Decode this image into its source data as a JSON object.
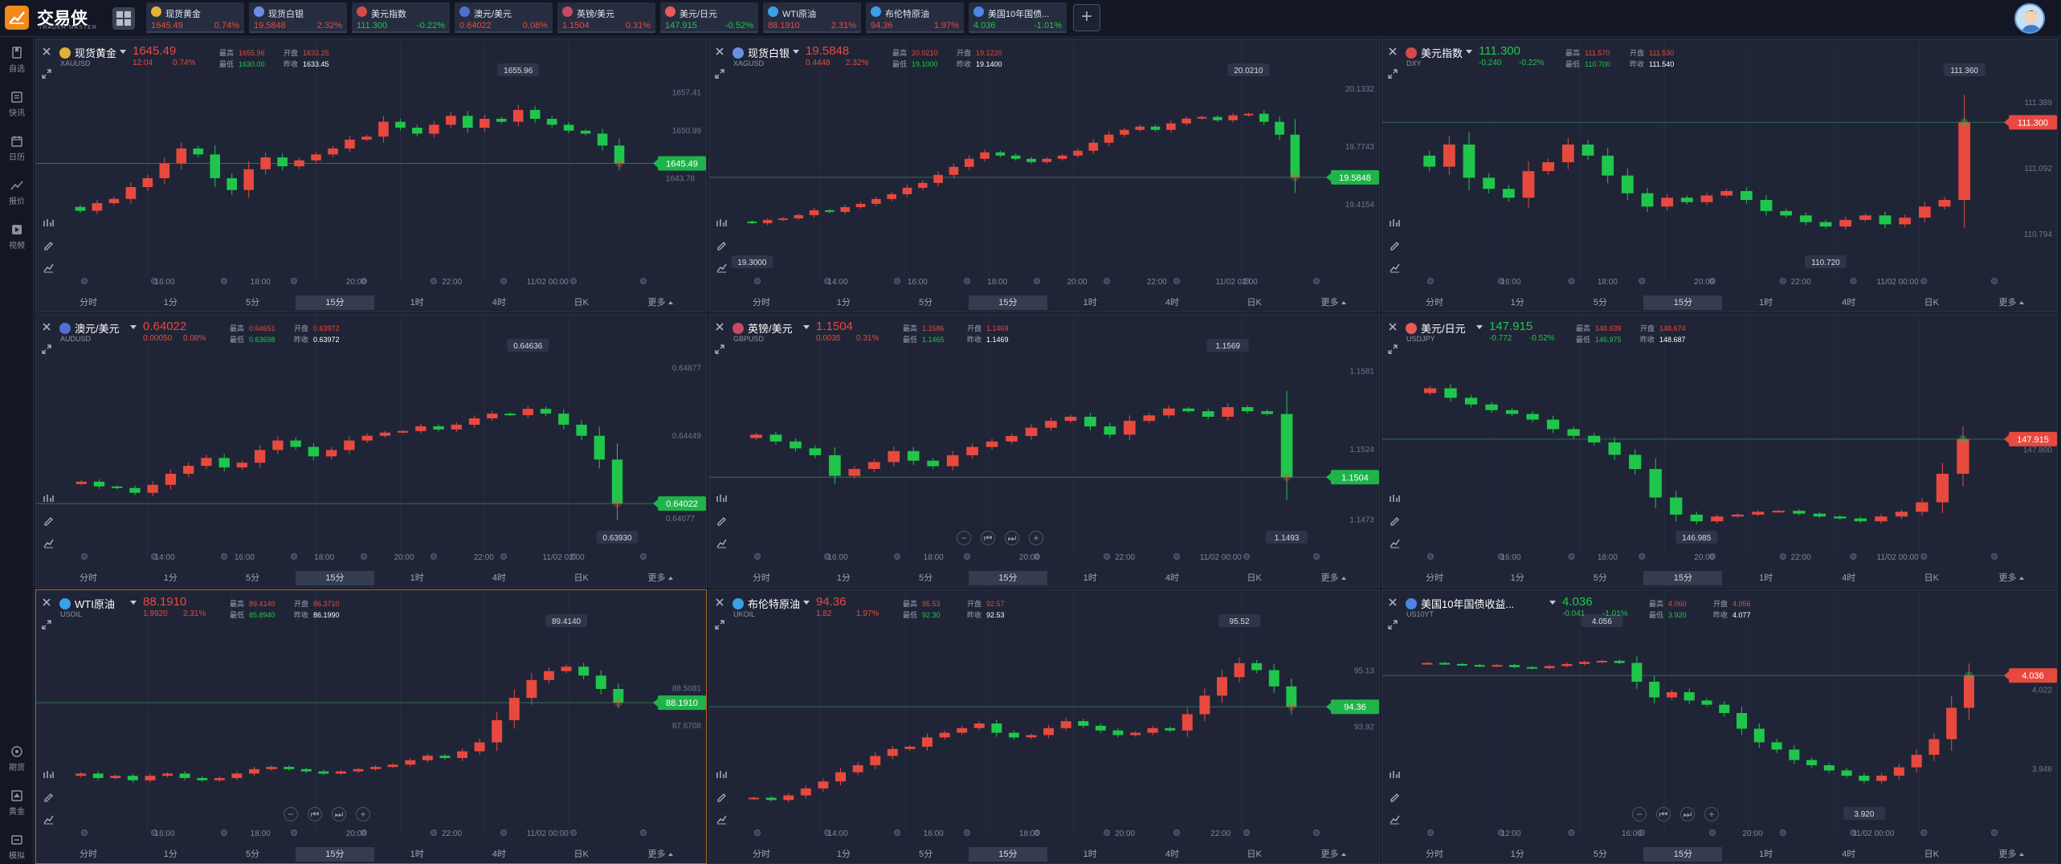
{
  "app": {
    "title": "交易侠",
    "subtitle": "TRADER MASTER"
  },
  "colors": {
    "up": "#e8493f",
    "down": "#1fc64b",
    "accent": "#f08a1c",
    "active_border": "#b1622a"
  },
  "tickers": [
    {
      "name": "现货黄金",
      "price": "1645.49",
      "change": "0.74%",
      "dir": "up",
      "icon": "gold-coin-icon",
      "color": "#e2b137"
    },
    {
      "name": "现货白银",
      "price": "19.5848",
      "change": "2.32%",
      "dir": "up",
      "icon": "silver-coin-icon",
      "color": "#6b8fe0"
    },
    {
      "name": "美元指数",
      "price": "111.300",
      "change": "-0.22%",
      "dir": "down",
      "icon": "us-flag-icon",
      "color": "#d84a4a"
    },
    {
      "name": "澳元/美元",
      "price": "0.64022",
      "change": "0.08%",
      "dir": "up",
      "icon": "au-us-flag-icon",
      "color": "#4f6fd6"
    },
    {
      "name": "英镑/美元",
      "price": "1.1504",
      "change": "0.31%",
      "dir": "up",
      "icon": "gb-us-flag-icon",
      "color": "#c94a63"
    },
    {
      "name": "美元/日元",
      "price": "147.915",
      "change": "-0.52%",
      "dir": "down",
      "icon": "us-jp-flag-icon",
      "color": "#e85a55"
    },
    {
      "name": "WTI原油",
      "price": "88.1910",
      "change": "2.31%",
      "dir": "up",
      "icon": "oil-drop-icon",
      "color": "#3aa0e8"
    },
    {
      "name": "布伦特原油",
      "price": "94.36",
      "change": "1.97%",
      "dir": "up",
      "icon": "oil-drop-icon",
      "color": "#3aa0e8"
    },
    {
      "name": "美国10年国债...",
      "price": "4.036",
      "change": "-1.01%",
      "dir": "down",
      "icon": "bar-chart-icon",
      "color": "#4b86e8"
    }
  ],
  "sidebar": [
    {
      "label": "自选",
      "icon": "bookmark-icon"
    },
    {
      "label": "快讯",
      "icon": "news-icon"
    },
    {
      "label": "日历",
      "icon": "calendar-icon"
    },
    {
      "label": "报价",
      "icon": "quote-line-icon"
    },
    {
      "label": "视频",
      "icon": "video-icon"
    },
    {
      "label": "期货",
      "icon": "futures-icon"
    },
    {
      "label": "黄金",
      "icon": "gold-icon"
    },
    {
      "label": "模拟",
      "icon": "simulation-icon"
    }
  ],
  "timeframes": [
    "分时",
    "1分",
    "5分",
    "15分",
    "1时",
    "4时",
    "日K",
    "更多"
  ],
  "selected_timeframe": "15分",
  "stat_labels": {
    "high": "最高",
    "low": "最低",
    "open": "开盘",
    "prev": "昨收"
  },
  "panels": [
    {
      "name": "现货黄金",
      "code": "XAUUSD",
      "price": "1645.49",
      "change": "12.04",
      "pct": "0.74%",
      "dir": "up",
      "flag_color": "#e2b137",
      "stats": {
        "high": "1655.96",
        "low": "1630.00",
        "open": "1633.25",
        "prev": "1633.45"
      },
      "price_tag": "1645.49",
      "ref_price": "1643.78",
      "axis_labels": [
        "1657.41",
        "1650.99"
      ],
      "hi_label": "1655.96",
      "lo_label": "",
      "time_labels": [
        "16:00",
        "18:00",
        "20:00",
        "22:00",
        "11/02 00:00"
      ]
    },
    {
      "name": "现货白银",
      "code": "XAGUSD",
      "price": "19.5848",
      "change": "0.4448",
      "pct": "2.32%",
      "dir": "up",
      "flag_color": "#6b8fe0",
      "stats": {
        "high": "20.0210",
        "low": "19.1000",
        "open": "19.1220",
        "prev": "19.1400"
      },
      "price_tag": "19.5848",
      "ref_price": "",
      "axis_labels": [
        "20.1332",
        "19.7743",
        "19.4154"
      ],
      "hi_label": "20.0210",
      "lo_label": "19.3000",
      "time_labels": [
        "14:00",
        "16:00",
        "18:00",
        "20:00",
        "22:00",
        "11/02 02:00"
      ]
    },
    {
      "name": "美元指数",
      "code": "DXY",
      "price": "111.300",
      "change": "-0.240",
      "pct": "-0.22%",
      "dir": "down",
      "flag_color": "#d84a4a",
      "stats": {
        "high": "111.570",
        "low": "110.700",
        "open": "111.530",
        "prev": "111.540"
      },
      "price_tag": "111.300",
      "ref_price": "",
      "axis_labels": [
        "111.389",
        "111.092",
        "110.794"
      ],
      "hi_label": "111.360",
      "lo_label": "110.720",
      "time_labels": [
        "16:00",
        "18:00",
        "20:00",
        "22:00",
        "11/02 00:00"
      ]
    },
    {
      "name": "澳元/美元",
      "code": "AUDUSD",
      "price": "0.64022",
      "change": "0.00050",
      "pct": "0.08%",
      "dir": "up",
      "flag_color": "#4f6fd6",
      "stats": {
        "high": "0.64651",
        "low": "0.63698",
        "open": "0.63972",
        "prev": "0.63972"
      },
      "price_tag": "0.64022",
      "ref_price": "0.64077",
      "axis_labels": [
        "0.64877",
        "0.64449"
      ],
      "hi_label": "0.64636",
      "lo_label": "0.63930",
      "time_labels": [
        "14:00",
        "16:00",
        "18:00",
        "20:00",
        "22:00",
        "11/02 02:00"
      ]
    },
    {
      "name": "英镑/美元",
      "code": "GBPUSD",
      "price": "1.1504",
      "change": "0.0035",
      "pct": "0.31%",
      "dir": "up",
      "flag_color": "#c94a63",
      "stats": {
        "high": "1.1586",
        "low": "1.1465",
        "open": "1.1469",
        "prev": "1.1469"
      },
      "price_tag": "1.1504",
      "ref_price": "",
      "axis_labels": [
        "1.1581",
        "1.1524",
        "1.1473"
      ],
      "hi_label": "1.1569",
      "lo_label": "1.1493",
      "time_labels": [
        "16:00",
        "18:00",
        "20:00",
        "22:00",
        "11/02 00:00"
      ]
    },
    {
      "name": "美元/日元",
      "code": "USDJPY",
      "price": "147.915",
      "change": "-0.772",
      "pct": "-0.52%",
      "dir": "down",
      "flag_color": "#e85a55",
      "stats": {
        "high": "148.639",
        "low": "146.975",
        "open": "148.674",
        "prev": "148.687"
      },
      "price_tag": "147.915",
      "ref_price": "",
      "axis_labels": [
        "147.800"
      ],
      "hi_label": "",
      "lo_label": "146.985",
      "time_labels": [
        "16:00",
        "18:00",
        "20:00",
        "22:00",
        "11/02 00:00"
      ]
    },
    {
      "name": "WTI原油",
      "code": "USOIL",
      "price": "88.1910",
      "change": "1.9920",
      "pct": "2.31%",
      "dir": "up",
      "flag_color": "#3aa0e8",
      "stats": {
        "high": "89.4140",
        "low": "85.8940",
        "open": "86.3710",
        "prev": "86.1990"
      },
      "price_tag": "88.1910",
      "ref_price": "",
      "axis_labels": [
        "88.5081",
        "87.6708"
      ],
      "hi_label": "89.4140",
      "lo_label": "",
      "time_labels": [
        "16:00",
        "18:00",
        "20:00",
        "22:00",
        "11/02 00:00"
      ]
    },
    {
      "name": "布伦特原油",
      "code": "UKOIL",
      "price": "94.36",
      "change": "1.82",
      "pct": "1.97%",
      "dir": "up",
      "flag_color": "#3aa0e8",
      "stats": {
        "high": "95.53",
        "low": "92.30",
        "open": "92.57",
        "prev": "92.53"
      },
      "price_tag": "94.36",
      "ref_price": "",
      "axis_labels": [
        "95.13",
        "93.92"
      ],
      "hi_label": "95.52",
      "lo_label": "",
      "time_labels": [
        "14:00",
        "16:00",
        "18:00",
        "20:00",
        "22:00"
      ]
    },
    {
      "name": "美国10年国债收益...",
      "code": "US10YT",
      "price": "4.036",
      "change": "-0.041",
      "pct": "-1.01%",
      "dir": "down",
      "flag_color": "#4b86e8",
      "stats": {
        "high": "4.060",
        "low": "3.920",
        "open": "4.056",
        "prev": "4.077"
      },
      "price_tag": "4.036",
      "ref_price": "",
      "axis_labels": [
        "4.022",
        "3.946"
      ],
      "hi_label": "4.056",
      "lo_label": "3.920",
      "time_labels": [
        "12:00",
        "16:00",
        "20:00",
        "11/02 00:00"
      ]
    }
  ],
  "chart_data": [
    {
      "type": "candlestick",
      "symbol": "XAUUSD",
      "timeframe": "15分",
      "ylim": [
        1630.0,
        1658.0
      ],
      "values": [
        1637.5,
        1638.8,
        1639.5,
        1641.5,
        1643.0,
        1645.5,
        1648.0,
        1647.0,
        1643.0,
        1641.0,
        1644.5,
        1646.5,
        1645.0,
        1646.0,
        1647.0,
        1648.0,
        1649.5,
        1650.0,
        1652.5,
        1651.5,
        1650.5,
        1652.0,
        1653.5,
        1651.5,
        1653.0,
        1652.5,
        1654.5,
        1653.0,
        1652.0,
        1651.0,
        1650.5,
        1648.5,
        1645.49
      ]
    },
    {
      "type": "candlestick",
      "symbol": "XAGUSD",
      "timeframe": "15分",
      "ylim": [
        19.1,
        20.1332
      ],
      "values": [
        19.3,
        19.32,
        19.33,
        19.35,
        19.38,
        19.37,
        19.4,
        19.42,
        19.45,
        19.48,
        19.52,
        19.55,
        19.6,
        19.65,
        19.7,
        19.74,
        19.72,
        19.7,
        19.68,
        19.7,
        19.72,
        19.75,
        19.8,
        19.85,
        19.88,
        19.9,
        19.88,
        19.92,
        19.95,
        19.96,
        19.94,
        19.97,
        19.98,
        19.93,
        19.85,
        19.5848
      ]
    },
    {
      "type": "candlestick",
      "symbol": "DXY",
      "timeframe": "15分",
      "ylim": [
        110.7,
        111.45
      ],
      "values": [
        111.1,
        111.2,
        111.05,
        111.0,
        110.96,
        111.08,
        111.12,
        111.2,
        111.15,
        111.06,
        110.98,
        110.92,
        110.96,
        110.94,
        110.97,
        110.99,
        110.95,
        110.9,
        110.88,
        110.85,
        110.83,
        110.86,
        110.88,
        110.84,
        110.87,
        110.92,
        110.95,
        111.3
      ]
    },
    {
      "type": "candlestick",
      "symbol": "AUDUSD",
      "timeframe": "15分",
      "ylim": [
        0.6385,
        0.649
      ],
      "values": [
        0.6416,
        0.6413,
        0.6412,
        0.6409,
        0.6414,
        0.6421,
        0.6426,
        0.6431,
        0.6425,
        0.6428,
        0.6436,
        0.6442,
        0.6438,
        0.6432,
        0.6436,
        0.6442,
        0.6445,
        0.6447,
        0.6448,
        0.6451,
        0.6449,
        0.6452,
        0.6456,
        0.6459,
        0.6458,
        0.6462,
        0.6459,
        0.6452,
        0.6445,
        0.643,
        0.64022
      ]
    },
    {
      "type": "candlestick",
      "symbol": "GBPUSD",
      "timeframe": "15分",
      "ylim": [
        1.1465,
        1.1586
      ],
      "values": [
        1.1535,
        1.153,
        1.1525,
        1.152,
        1.1505,
        1.151,
        1.1515,
        1.1523,
        1.1516,
        1.1512,
        1.152,
        1.1526,
        1.153,
        1.1534,
        1.154,
        1.1545,
        1.1548,
        1.1541,
        1.1535,
        1.1545,
        1.1549,
        1.1554,
        1.1552,
        1.1548,
        1.1555,
        1.1552,
        1.155,
        1.1504
      ]
    },
    {
      "type": "candlestick",
      "symbol": "USDJPY",
      "timeframe": "15分",
      "ylim": [
        146.95,
        148.7
      ],
      "values": [
        148.45,
        148.35,
        148.28,
        148.22,
        148.18,
        148.12,
        148.02,
        147.95,
        147.88,
        147.75,
        147.6,
        147.3,
        147.12,
        147.05,
        147.1,
        147.12,
        147.15,
        147.16,
        147.13,
        147.1,
        147.08,
        147.05,
        147.1,
        147.15,
        147.25,
        147.55,
        147.915
      ]
    },
    {
      "type": "candlestick",
      "symbol": "USOIL",
      "timeframe": "15分",
      "ylim": [
        85.85,
        89.6
      ],
      "values": [
        86.6,
        86.5,
        86.55,
        86.45,
        86.55,
        86.6,
        86.5,
        86.45,
        86.5,
        86.6,
        86.7,
        86.75,
        86.7,
        86.65,
        86.6,
        86.65,
        86.7,
        86.75,
        86.8,
        86.9,
        87.0,
        86.95,
        87.1,
        87.3,
        87.8,
        88.3,
        88.7,
        88.9,
        89.0,
        88.8,
        88.5,
        88.191
      ]
    },
    {
      "type": "candlestick",
      "symbol": "UKOIL",
      "timeframe": "15分",
      "ylim": [
        92.2,
        95.8
      ],
      "values": [
        92.4,
        92.35,
        92.45,
        92.6,
        92.75,
        92.95,
        93.1,
        93.3,
        93.45,
        93.5,
        93.7,
        93.8,
        93.9,
        94.0,
        93.8,
        93.7,
        93.75,
        93.9,
        94.05,
        93.95,
        93.85,
        93.75,
        93.8,
        93.9,
        93.85,
        94.2,
        94.6,
        95.0,
        95.3,
        95.15,
        94.8,
        94.36
      ]
    },
    {
      "type": "candlestick",
      "symbol": "US10YT",
      "timeframe": "15分",
      "ylim": [
        3.91,
        4.07
      ],
      "values": [
        4.048,
        4.047,
        4.046,
        4.045,
        4.046,
        4.044,
        4.043,
        4.045,
        4.047,
        4.049,
        4.05,
        4.048,
        4.03,
        4.015,
        4.02,
        4.012,
        4.008,
        4.0,
        3.985,
        3.972,
        3.965,
        3.955,
        3.95,
        3.945,
        3.94,
        3.935,
        3.94,
        3.948,
        3.96,
        3.975,
        4.005,
        4.036
      ]
    }
  ]
}
